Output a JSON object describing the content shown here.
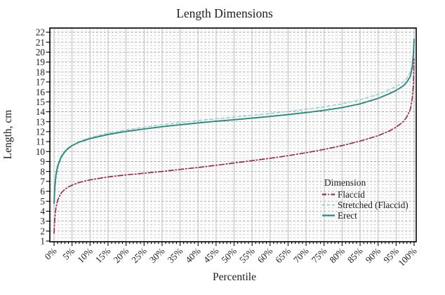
{
  "chart_data": {
    "type": "line",
    "title": "Length Dimensions",
    "xlabel": "Percentile",
    "ylabel": "Length, cm",
    "xlim": [
      0,
      100
    ],
    "ylim": [
      1,
      22.4
    ],
    "grid": true,
    "x_major_ticks": [
      0,
      5,
      10,
      15,
      20,
      25,
      30,
      35,
      40,
      45,
      50,
      55,
      60,
      65,
      70,
      75,
      80,
      85,
      90,
      95,
      100
    ],
    "x_tick_labels": [
      "0%",
      "5%",
      "10%",
      "15%",
      "20%",
      "25%",
      "30%",
      "35%",
      "40%",
      "45%",
      "50%",
      "55%",
      "60%",
      "65%",
      "70%",
      "75%",
      "80%",
      "85%",
      "90%",
      "95%",
      "100%"
    ],
    "x_minor_step": 1,
    "y_ticks": [
      1,
      2,
      3,
      4,
      5,
      6,
      7,
      8,
      9,
      10,
      11,
      12,
      13,
      14,
      15,
      16,
      17,
      18,
      19,
      20,
      21,
      22
    ],
    "y_minor_step": 0.3333,
    "legend": {
      "title": "Dimension",
      "position": "inside-right",
      "entries": [
        "Flaccid",
        "Stretched (Flaccid)",
        "Erect"
      ]
    },
    "series": [
      {
        "name": "Flaccid",
        "style": "dash-dot",
        "color": "#9e2a52",
        "points": [
          [
            0,
            1.8
          ],
          [
            0.2,
            3.2
          ],
          [
            0.5,
            4.3
          ],
          [
            1,
            5.1
          ],
          [
            2,
            5.85
          ],
          [
            3,
            6.2
          ],
          [
            4,
            6.45
          ],
          [
            5,
            6.62
          ],
          [
            7,
            6.9
          ],
          [
            10,
            7.15
          ],
          [
            15,
            7.45
          ],
          [
            20,
            7.65
          ],
          [
            25,
            7.82
          ],
          [
            30,
            8.0
          ],
          [
            35,
            8.2
          ],
          [
            40,
            8.4
          ],
          [
            45,
            8.62
          ],
          [
            50,
            8.85
          ],
          [
            55,
            9.08
          ],
          [
            60,
            9.32
          ],
          [
            65,
            9.58
          ],
          [
            70,
            9.88
          ],
          [
            75,
            10.22
          ],
          [
            80,
            10.6
          ],
          [
            85,
            11.05
          ],
          [
            90,
            11.6
          ],
          [
            93,
            12.05
          ],
          [
            95,
            12.45
          ],
          [
            97,
            13.0
          ],
          [
            98,
            13.5
          ],
          [
            99,
            14.3
          ],
          [
            99.5,
            15.4
          ],
          [
            99.8,
            16.8
          ],
          [
            100,
            19.3
          ]
        ]
      },
      {
        "name": "Stretched (Flaccid)",
        "style": "dashed",
        "color": "#a3d1d3",
        "points": [
          [
            0,
            4.4
          ],
          [
            0.2,
            5.9
          ],
          [
            0.5,
            7.2
          ],
          [
            1,
            8.3
          ],
          [
            2,
            9.35
          ],
          [
            3,
            9.9
          ],
          [
            4,
            10.3
          ],
          [
            5,
            10.6
          ],
          [
            7,
            11.0
          ],
          [
            10,
            11.4
          ],
          [
            15,
            11.85
          ],
          [
            20,
            12.18
          ],
          [
            25,
            12.45
          ],
          [
            30,
            12.7
          ],
          [
            35,
            12.92
          ],
          [
            40,
            13.12
          ],
          [
            45,
            13.3
          ],
          [
            50,
            13.47
          ],
          [
            55,
            13.65
          ],
          [
            60,
            13.83
          ],
          [
            65,
            14.03
          ],
          [
            70,
            14.25
          ],
          [
            75,
            14.5
          ],
          [
            80,
            14.8
          ],
          [
            85,
            15.2
          ],
          [
            90,
            15.75
          ],
          [
            93,
            16.2
          ],
          [
            95,
            16.55
          ],
          [
            97,
            17.0
          ],
          [
            98,
            17.4
          ],
          [
            99,
            18.0
          ],
          [
            99.5,
            18.9
          ],
          [
            99.8,
            20.0
          ],
          [
            100,
            21.1
          ]
        ]
      },
      {
        "name": "Erect",
        "style": "solid",
        "color": "#2b8b80",
        "points": [
          [
            0,
            4.8
          ],
          [
            0.2,
            6.3
          ],
          [
            0.5,
            7.6
          ],
          [
            1,
            8.55
          ],
          [
            2,
            9.5
          ],
          [
            3,
            10.0
          ],
          [
            4,
            10.35
          ],
          [
            5,
            10.6
          ],
          [
            7,
            10.95
          ],
          [
            10,
            11.3
          ],
          [
            15,
            11.72
          ],
          [
            20,
            12.02
          ],
          [
            25,
            12.27
          ],
          [
            30,
            12.5
          ],
          [
            35,
            12.7
          ],
          [
            40,
            12.88
          ],
          [
            45,
            13.05
          ],
          [
            50,
            13.2
          ],
          [
            55,
            13.37
          ],
          [
            60,
            13.53
          ],
          [
            65,
            13.72
          ],
          [
            70,
            13.92
          ],
          [
            75,
            14.15
          ],
          [
            80,
            14.42
          ],
          [
            85,
            14.8
          ],
          [
            90,
            15.35
          ],
          [
            93,
            15.8
          ],
          [
            95,
            16.15
          ],
          [
            97,
            16.6
          ],
          [
            98,
            17.0
          ],
          [
            99,
            17.6
          ],
          [
            99.5,
            18.5
          ],
          [
            99.8,
            19.8
          ],
          [
            100,
            21.3
          ]
        ]
      }
    ],
    "colors": {
      "frame": "#000000",
      "text": "#1c1c1c",
      "grid_minor_h": "#cbcbcb",
      "grid_major_h": "#9e9e9e",
      "grid_minor_v": "#d9d9d9",
      "grid_major_v": "#b2b2b2"
    }
  }
}
